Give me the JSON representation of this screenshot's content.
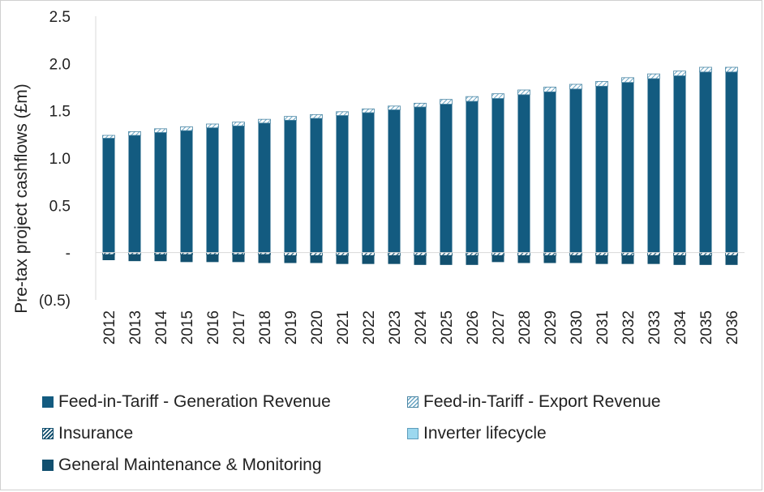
{
  "chart_data": {
    "type": "bar",
    "stacked": true,
    "ylabel": "Pre-tax project cashflows (£m)",
    "xlabel": "",
    "ylim": [
      -0.5,
      2.5
    ],
    "y_ticks": [
      "2.5",
      "2.0",
      "1.5",
      "1.0",
      "0.5",
      "-",
      "(0.5)"
    ],
    "y_tick_values": [
      2.5,
      2.0,
      1.5,
      1.0,
      0.5,
      0,
      -0.5
    ],
    "grid": false,
    "legend_position": "bottom",
    "categories": [
      "2012",
      "2013",
      "2014",
      "2015",
      "2016",
      "2017",
      "2018",
      "2019",
      "2020",
      "2021",
      "2022",
      "2023",
      "2024",
      "2025",
      "2026",
      "2027",
      "2028",
      "2029",
      "2030",
      "2031",
      "2032",
      "2033",
      "2034",
      "2035",
      "2036"
    ],
    "series": [
      {
        "name": "Feed-in-Tariff - Generation Revenue",
        "color": "#135b80",
        "pattern": "solid",
        "values": [
          1.21,
          1.24,
          1.27,
          1.29,
          1.32,
          1.34,
          1.37,
          1.4,
          1.42,
          1.45,
          1.48,
          1.51,
          1.54,
          1.57,
          1.6,
          1.63,
          1.67,
          1.7,
          1.73,
          1.76,
          1.8,
          1.84,
          1.87,
          1.91,
          1.91
        ]
      },
      {
        "name": "Feed-in-Tariff - Export Revenue",
        "color": "#6aa6c4",
        "pattern": "hatch-light",
        "values": [
          0.03,
          0.04,
          0.04,
          0.04,
          0.04,
          0.04,
          0.04,
          0.04,
          0.04,
          0.04,
          0.04,
          0.04,
          0.04,
          0.05,
          0.05,
          0.05,
          0.05,
          0.05,
          0.05,
          0.05,
          0.05,
          0.05,
          0.05,
          0.05,
          0.05
        ]
      },
      {
        "name": "Insurance",
        "color": "#12506f",
        "pattern": "hatch-dark",
        "values": [
          -0.02,
          -0.02,
          -0.02,
          -0.02,
          -0.02,
          -0.02,
          -0.02,
          -0.03,
          -0.03,
          -0.03,
          -0.03,
          -0.03,
          -0.03,
          -0.03,
          -0.03,
          -0.03,
          -0.03,
          -0.03,
          -0.03,
          -0.03,
          -0.03,
          -0.03,
          -0.03,
          -0.03,
          -0.03
        ]
      },
      {
        "name": "Inverter lifecycle",
        "color": "#9cd8ef",
        "pattern": "light",
        "values": [
          0,
          0,
          0,
          0,
          0,
          0,
          0,
          0,
          0,
          0,
          0,
          0,
          0,
          0,
          0,
          0,
          0,
          0,
          0,
          0,
          0,
          0,
          0,
          0,
          0
        ]
      },
      {
        "name": "General Maintenance & Monitoring",
        "color": "#12506f",
        "pattern": "solid-dark",
        "values": [
          -0.06,
          -0.07,
          -0.07,
          -0.08,
          -0.08,
          -0.08,
          -0.09,
          -0.08,
          -0.08,
          -0.09,
          -0.09,
          -0.09,
          -0.1,
          -0.1,
          -0.1,
          -0.07,
          -0.08,
          -0.08,
          -0.08,
          -0.09,
          -0.09,
          -0.09,
          -0.1,
          -0.1,
          -0.1
        ]
      }
    ]
  },
  "legend": {
    "items": [
      {
        "label": "Feed-in-Tariff - Generation Revenue",
        "swatch": "solid"
      },
      {
        "label": "Feed-in-Tariff - Export Revenue",
        "swatch": "hatch-light"
      },
      {
        "label": "Insurance",
        "swatch": "hatch-dark"
      },
      {
        "label": "Inverter lifecycle",
        "swatch": "light"
      },
      {
        "label": "General Maintenance & Monitoring",
        "swatch": "dark"
      }
    ]
  }
}
